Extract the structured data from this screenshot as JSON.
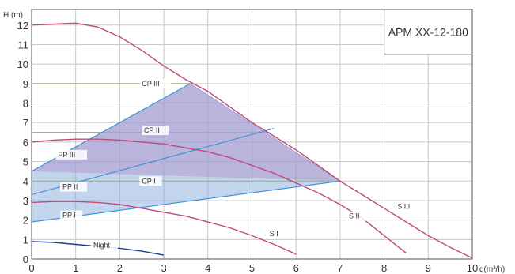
{
  "chart_data": {
    "type": "line",
    "title": "APM XX-12-180",
    "xlabel": "q(m³/h)",
    "ylabel": "H (m)",
    "xlim": [
      0,
      10
    ],
    "ylim": [
      0,
      13
    ],
    "x_ticks": [
      0,
      1,
      2,
      3,
      4,
      5,
      6,
      7,
      8,
      9,
      10
    ],
    "y_ticks": [
      0,
      1,
      2,
      3,
      4,
      5,
      6,
      7,
      8,
      9,
      10,
      11,
      12
    ],
    "grid": true,
    "shaded_region": [
      [
        0,
        4.5
      ],
      [
        3.6,
        9.0
      ],
      [
        7.0,
        4.0
      ],
      [
        0,
        1.9
      ]
    ],
    "series": [
      {
        "name": "S III",
        "kind": "speed",
        "color": "#c0487a",
        "points": [
          [
            0,
            12.0
          ],
          [
            0.5,
            12.05
          ],
          [
            1.0,
            12.1
          ],
          [
            1.5,
            11.9
          ],
          [
            2.0,
            11.4
          ],
          [
            2.5,
            10.7
          ],
          [
            3.0,
            9.9
          ],
          [
            3.5,
            9.2
          ],
          [
            4.0,
            8.6
          ],
          [
            4.5,
            7.8
          ],
          [
            5.0,
            7.0
          ],
          [
            5.5,
            6.3
          ],
          [
            6.0,
            5.6
          ],
          [
            6.5,
            4.8
          ],
          [
            7.0,
            4.0
          ],
          [
            7.5,
            3.3
          ],
          [
            8.0,
            2.6
          ],
          [
            8.5,
            1.9
          ],
          [
            9.0,
            1.2
          ],
          [
            9.5,
            0.6
          ],
          [
            10.0,
            0.05
          ]
        ]
      },
      {
        "name": "S II",
        "kind": "speed",
        "color": "#c0487a",
        "points": [
          [
            0,
            6.0
          ],
          [
            0.5,
            6.1
          ],
          [
            1.0,
            6.15
          ],
          [
            1.5,
            6.15
          ],
          [
            2.0,
            6.1
          ],
          [
            2.5,
            6.0
          ],
          [
            3.0,
            5.9
          ],
          [
            3.5,
            5.7
          ],
          [
            4.0,
            5.5
          ],
          [
            4.5,
            5.2
          ],
          [
            5.0,
            4.8
          ],
          [
            5.5,
            4.4
          ],
          [
            6.0,
            3.9
          ],
          [
            6.5,
            3.4
          ],
          [
            7.0,
            2.8
          ],
          [
            7.5,
            2.1
          ],
          [
            8.0,
            1.2
          ],
          [
            8.5,
            0.3
          ]
        ]
      },
      {
        "name": "S I",
        "kind": "speed",
        "color": "#c0487a",
        "points": [
          [
            0,
            2.9
          ],
          [
            0.5,
            2.95
          ],
          [
            1.0,
            2.95
          ],
          [
            1.5,
            2.9
          ],
          [
            2.0,
            2.8
          ],
          [
            2.5,
            2.6
          ],
          [
            3.0,
            2.4
          ],
          [
            3.5,
            2.2
          ],
          [
            4.0,
            1.9
          ],
          [
            4.5,
            1.6
          ],
          [
            5.0,
            1.2
          ],
          [
            5.5,
            0.75
          ],
          [
            6.0,
            0.25
          ]
        ]
      },
      {
        "name": "CP III",
        "kind": "cp",
        "color": "#8cc850",
        "points": [
          [
            0,
            9.0
          ],
          [
            3.6,
            9.0
          ]
        ]
      },
      {
        "name": "CP II",
        "kind": "cp",
        "color": "#8cc850",
        "points": [
          [
            0,
            6.5
          ],
          [
            5.4,
            6.5
          ]
        ]
      },
      {
        "name": "CP I",
        "kind": "cp",
        "color": "#8cc850",
        "points": [
          [
            0,
            4.0
          ],
          [
            7.0,
            4.0
          ]
        ]
      },
      {
        "name": "PP III",
        "kind": "pp",
        "color": "#3a8fd9",
        "points": [
          [
            0,
            4.5
          ],
          [
            3.6,
            9.0
          ]
        ]
      },
      {
        "name": "PP II",
        "kind": "pp",
        "color": "#3a8fd9",
        "points": [
          [
            0,
            3.3
          ],
          [
            5.5,
            6.7
          ]
        ]
      },
      {
        "name": "PP I",
        "kind": "pp",
        "color": "#3a8fd9",
        "points": [
          [
            0,
            1.9
          ],
          [
            7.0,
            4.0
          ]
        ]
      },
      {
        "name": "Night",
        "kind": "night",
        "color": "#1f3e8f",
        "points": [
          [
            0,
            0.9
          ],
          [
            0.5,
            0.85
          ],
          [
            1.0,
            0.75
          ],
          [
            1.5,
            0.65
          ],
          [
            2.0,
            0.55
          ],
          [
            2.5,
            0.4
          ],
          [
            3.0,
            0.2
          ]
        ]
      }
    ],
    "curve_labels": [
      {
        "text": "CP III",
        "x": 2.5,
        "y": 9.0
      },
      {
        "text": "CP II",
        "x": 2.55,
        "y": 6.6
      },
      {
        "text": "CP I",
        "x": 2.5,
        "y": 4.0
      },
      {
        "text": "PP III",
        "x": 0.6,
        "y": 5.35
      },
      {
        "text": "PP II",
        "x": 0.7,
        "y": 3.7
      },
      {
        "text": "PP I",
        "x": 0.7,
        "y": 2.25
      },
      {
        "text": "S III",
        "x": 8.3,
        "y": 2.7
      },
      {
        "text": "S II",
        "x": 7.2,
        "y": 2.2
      },
      {
        "text": "S I",
        "x": 5.4,
        "y": 1.3
      },
      {
        "text": "Night",
        "x": 1.4,
        "y": 0.7
      }
    ]
  }
}
